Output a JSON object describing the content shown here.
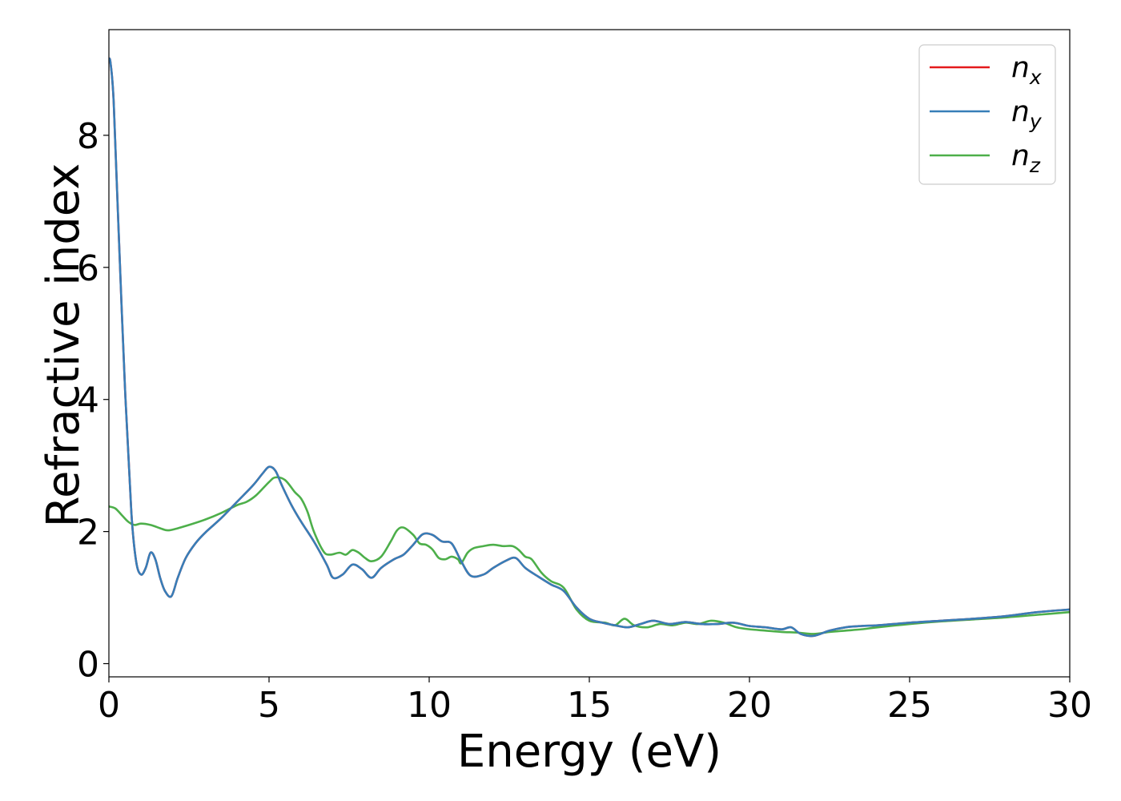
{
  "chart_data": {
    "type": "line",
    "xlabel": "Energy (eV)",
    "ylabel": "Refractive index",
    "xlim": [
      0,
      30
    ],
    "ylim": [
      -0.2,
      9.6
    ],
    "xticks": [
      "0",
      "5",
      "10",
      "15",
      "20",
      "25",
      "30"
    ],
    "yticks": [
      "0",
      "2",
      "4",
      "6",
      "8"
    ],
    "grid": false,
    "legend": {
      "position": "top-right",
      "entries": [
        {
          "base": "n",
          "sub": "x",
          "color": "#e41a1c"
        },
        {
          "base": "n",
          "sub": "y",
          "color": "#377eb8"
        },
        {
          "base": "n",
          "sub": "z",
          "color": "#4daf4a"
        }
      ]
    },
    "series": [
      {
        "name": "n_x",
        "color": "#e41a1c",
        "x": [
          0,
          0.05,
          0.15,
          0.3,
          0.5,
          0.7,
          0.85,
          1.0,
          1.15,
          1.3,
          1.45,
          1.6,
          1.75,
          1.95,
          2.15,
          2.4,
          2.7,
          3.0,
          3.5,
          4.0,
          4.5,
          4.8,
          5.0,
          5.2,
          5.4,
          5.7,
          6.0,
          6.4,
          6.8,
          7.0,
          7.3,
          7.6,
          7.9,
          8.2,
          8.5,
          8.9,
          9.2,
          9.5,
          9.8,
          10.1,
          10.4,
          10.7,
          11.0,
          11.3,
          11.7,
          12.0,
          12.4,
          12.7,
          13.0,
          13.4,
          13.8,
          14.2,
          14.6,
          15.0,
          15.4,
          15.8,
          16.2,
          16.6,
          17.0,
          17.5,
          18.0,
          18.5,
          19.0,
          19.5,
          20.0,
          20.5,
          21.0,
          21.3,
          21.6,
          22.0,
          22.5,
          23.0,
          23.5,
          24.0,
          25.0,
          26.0,
          27.0,
          28.0,
          29.0,
          30.0
        ],
        "values": [
          9.15,
          9.1,
          8.5,
          6.6,
          4.2,
          2.3,
          1.55,
          1.35,
          1.45,
          1.68,
          1.58,
          1.3,
          1.1,
          1.02,
          1.3,
          1.6,
          1.82,
          1.98,
          2.2,
          2.45,
          2.7,
          2.88,
          2.98,
          2.92,
          2.7,
          2.4,
          2.15,
          1.85,
          1.5,
          1.3,
          1.35,
          1.5,
          1.43,
          1.3,
          1.45,
          1.58,
          1.65,
          1.8,
          1.96,
          1.95,
          1.85,
          1.82,
          1.55,
          1.33,
          1.35,
          1.45,
          1.56,
          1.6,
          1.45,
          1.32,
          1.2,
          1.1,
          0.85,
          0.68,
          0.62,
          0.58,
          0.55,
          0.6,
          0.65,
          0.6,
          0.63,
          0.6,
          0.6,
          0.62,
          0.57,
          0.55,
          0.52,
          0.55,
          0.45,
          0.42,
          0.5,
          0.55,
          0.57,
          0.58,
          0.62,
          0.65,
          0.68,
          0.72,
          0.78,
          0.82
        ]
      },
      {
        "name": "n_y",
        "color": "#377eb8",
        "x": [
          0,
          0.05,
          0.15,
          0.3,
          0.5,
          0.7,
          0.85,
          1.0,
          1.15,
          1.3,
          1.45,
          1.6,
          1.75,
          1.95,
          2.15,
          2.4,
          2.7,
          3.0,
          3.5,
          4.0,
          4.5,
          4.8,
          5.0,
          5.2,
          5.4,
          5.7,
          6.0,
          6.4,
          6.8,
          7.0,
          7.3,
          7.6,
          7.9,
          8.2,
          8.5,
          8.9,
          9.2,
          9.5,
          9.8,
          10.1,
          10.4,
          10.7,
          11.0,
          11.3,
          11.7,
          12.0,
          12.4,
          12.7,
          13.0,
          13.4,
          13.8,
          14.2,
          14.6,
          15.0,
          15.4,
          15.8,
          16.2,
          16.6,
          17.0,
          17.5,
          18.0,
          18.5,
          19.0,
          19.5,
          20.0,
          20.5,
          21.0,
          21.3,
          21.6,
          22.0,
          22.5,
          23.0,
          23.5,
          24.0,
          25.0,
          26.0,
          27.0,
          28.0,
          29.0,
          30.0
        ],
        "values": [
          9.15,
          9.1,
          8.5,
          6.6,
          4.2,
          2.3,
          1.55,
          1.35,
          1.45,
          1.68,
          1.58,
          1.3,
          1.1,
          1.02,
          1.3,
          1.6,
          1.82,
          1.98,
          2.2,
          2.45,
          2.7,
          2.88,
          2.98,
          2.92,
          2.7,
          2.4,
          2.15,
          1.85,
          1.5,
          1.3,
          1.35,
          1.5,
          1.43,
          1.3,
          1.45,
          1.58,
          1.65,
          1.8,
          1.96,
          1.95,
          1.85,
          1.82,
          1.55,
          1.33,
          1.35,
          1.45,
          1.56,
          1.6,
          1.45,
          1.32,
          1.2,
          1.1,
          0.85,
          0.68,
          0.62,
          0.58,
          0.55,
          0.6,
          0.65,
          0.6,
          0.63,
          0.6,
          0.6,
          0.62,
          0.57,
          0.55,
          0.52,
          0.55,
          0.45,
          0.42,
          0.5,
          0.55,
          0.57,
          0.58,
          0.62,
          0.65,
          0.68,
          0.72,
          0.78,
          0.82
        ]
      },
      {
        "name": "n_z",
        "color": "#4daf4a",
        "x": [
          0,
          0.2,
          0.4,
          0.6,
          0.8,
          1.0,
          1.3,
          1.6,
          1.8,
          2.0,
          2.5,
          3.0,
          3.5,
          4.0,
          4.3,
          4.6,
          5.0,
          5.2,
          5.5,
          5.8,
          6.0,
          6.2,
          6.4,
          6.7,
          6.9,
          7.2,
          7.4,
          7.6,
          7.8,
          8.0,
          8.2,
          8.5,
          8.8,
          9.0,
          9.2,
          9.5,
          9.7,
          9.9,
          10.1,
          10.3,
          10.5,
          10.7,
          10.9,
          11.0,
          11.2,
          11.4,
          11.7,
          12.0,
          12.3,
          12.6,
          12.8,
          13.0,
          13.2,
          13.5,
          13.8,
          14.2,
          14.6,
          15.0,
          15.5,
          15.8,
          16.1,
          16.4,
          16.8,
          17.2,
          17.6,
          18.0,
          18.4,
          18.8,
          19.2,
          19.6,
          20.0,
          20.5,
          21.0,
          21.5,
          22.0,
          22.5,
          23.0,
          23.5,
          24.0,
          25.0,
          26.0,
          27.0,
          28.0,
          29.0,
          30.0
        ],
        "values": [
          2.38,
          2.35,
          2.25,
          2.15,
          2.1,
          2.12,
          2.1,
          2.05,
          2.02,
          2.03,
          2.1,
          2.18,
          2.28,
          2.4,
          2.45,
          2.55,
          2.75,
          2.82,
          2.78,
          2.6,
          2.5,
          2.3,
          2.0,
          1.7,
          1.65,
          1.68,
          1.65,
          1.72,
          1.68,
          1.6,
          1.55,
          1.62,
          1.85,
          2.02,
          2.06,
          1.95,
          1.82,
          1.8,
          1.73,
          1.6,
          1.58,
          1.62,
          1.58,
          1.52,
          1.68,
          1.75,
          1.78,
          1.8,
          1.78,
          1.78,
          1.72,
          1.62,
          1.58,
          1.38,
          1.25,
          1.15,
          0.82,
          0.65,
          0.62,
          0.58,
          0.68,
          0.58,
          0.55,
          0.6,
          0.58,
          0.62,
          0.6,
          0.65,
          0.62,
          0.55,
          0.52,
          0.5,
          0.48,
          0.47,
          0.45,
          0.48,
          0.5,
          0.52,
          0.55,
          0.6,
          0.64,
          0.67,
          0.7,
          0.74,
          0.78
        ]
      }
    ]
  }
}
